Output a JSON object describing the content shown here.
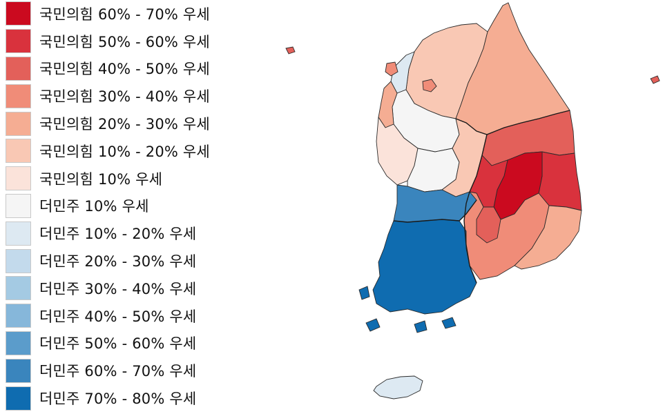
{
  "legend": {
    "items": [
      {
        "label": "국민의힘 60% - 70% 우세",
        "color": "#cb0a1f"
      },
      {
        "label": "국민의힘 50% - 60% 우세",
        "color": "#d9323d"
      },
      {
        "label": "국민의힘 40% - 50% 우세",
        "color": "#e3605a"
      },
      {
        "label": "국민의힘 30% - 40% 우세",
        "color": "#f08c78"
      },
      {
        "label": "국민의힘 20% - 30% 우세",
        "color": "#f5ad93"
      },
      {
        "label": "국민의힘 10% - 20% 우세",
        "color": "#f9c8b4"
      },
      {
        "label": "국민의힘 10% 우세",
        "color": "#fbe3da"
      },
      {
        "label": "더민주 10% 우세",
        "color": "#f5f5f5"
      },
      {
        "label": "더민주 10% - 20% 우세",
        "color": "#dde9f2"
      },
      {
        "label": "더민주 20% - 30% 우세",
        "color": "#c3daec"
      },
      {
        "label": "더민주 30% - 40% 우세",
        "color": "#a4cae3"
      },
      {
        "label": "더민주 40% - 50% 우세",
        "color": "#86b7da"
      },
      {
        "label": "더민주 50% - 60% 우세",
        "color": "#5b9ccb"
      },
      {
        "label": "더민주 60% - 70% 우세",
        "color": "#3a85bd"
      },
      {
        "label": "더민주 70% - 80% 우세",
        "color": "#0f6cb0"
      }
    ]
  },
  "map": {
    "regions": [
      {
        "name": "north-central",
        "color": "#f9c8b4"
      },
      {
        "name": "gangwon",
        "color": "#f5ad93"
      },
      {
        "name": "gyeonggi-nw",
        "color": "#dde9f2"
      },
      {
        "name": "seoul",
        "color": "#f5f5f5"
      },
      {
        "name": "incheon-west",
        "color": "#f5ad93"
      },
      {
        "name": "chungcheong-west",
        "color": "#fbe3da"
      },
      {
        "name": "chungcheong-central",
        "color": "#f5f5f5"
      },
      {
        "name": "chungbuk",
        "color": "#f9c8b4"
      },
      {
        "name": "gyeongbuk-north",
        "color": "#e3605a"
      },
      {
        "name": "gyeongbuk-east",
        "color": "#d9323d"
      },
      {
        "name": "daegu",
        "color": "#cb0a1f"
      },
      {
        "name": "gyeongbuk-west",
        "color": "#d9323d"
      },
      {
        "name": "gyeongnam",
        "color": "#f08c78"
      },
      {
        "name": "busan-ulsan",
        "color": "#f5ad93"
      },
      {
        "name": "jeonbuk",
        "color": "#3a85bd"
      },
      {
        "name": "jeonnam",
        "color": "#0f6cb0"
      },
      {
        "name": "jeju",
        "color": "#dde9f2"
      },
      {
        "name": "ulleung",
        "color": "#e3605a"
      },
      {
        "name": "ganghwa",
        "color": "#f08c78"
      },
      {
        "name": "seoul-center",
        "color": "#f08c78"
      },
      {
        "name": "gyeongnam-west",
        "color": "#e3605a"
      }
    ]
  }
}
